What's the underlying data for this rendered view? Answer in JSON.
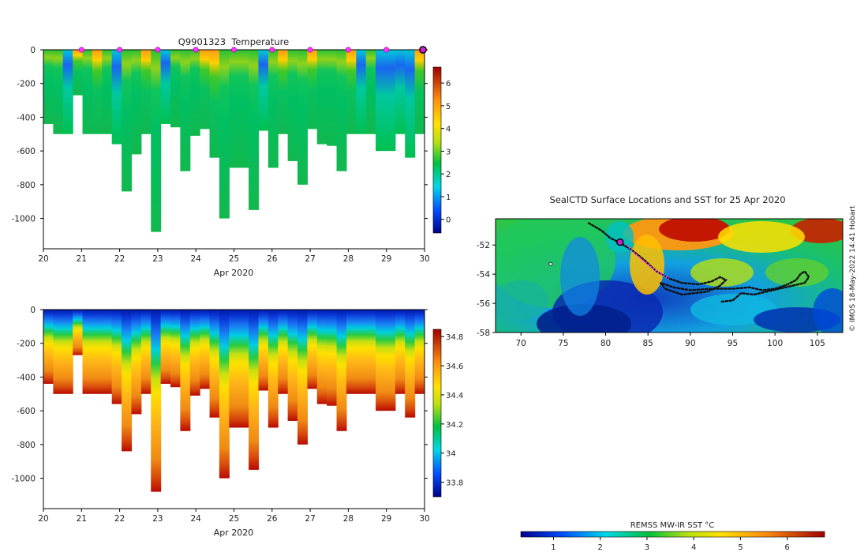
{
  "chart_data": [
    {
      "type": "heatmap",
      "id": "temperature",
      "title": "Q9901323  Temperature",
      "xlabel": "Apr 2020",
      "ylabel": "",
      "xlim": [
        20,
        30
      ],
      "ylim": [
        -1180,
        0
      ],
      "x_ticks": [
        "20",
        "21",
        "22",
        "23",
        "24",
        "25",
        "26",
        "27",
        "28",
        "29",
        "30"
      ],
      "y_ticks": [
        {
          "v": 0,
          "label": "0"
        },
        {
          "v": -200,
          "label": "-200"
        },
        {
          "v": -400,
          "label": "-400"
        },
        {
          "v": -600,
          "label": "-600"
        },
        {
          "v": -800,
          "label": "-800"
        },
        {
          "v": -1000,
          "label": "-1000"
        }
      ],
      "profile_depths_m": [
        440,
        500,
        500,
        270,
        500,
        500,
        500,
        560,
        840,
        620,
        500,
        1080,
        440,
        460,
        720,
        510,
        470,
        640,
        1000,
        700,
        700,
        950,
        480,
        700,
        500,
        660,
        800,
        470,
        560,
        570,
        720,
        500,
        500,
        500,
        600,
        600,
        500,
        640,
        500
      ],
      "surface_markers_day": [
        21,
        22,
        23,
        24,
        25,
        26,
        27,
        28,
        29
      ],
      "final_marker_day": 30,
      "colorbar": {
        "min": -0.6,
        "max": 6.7,
        "ticks": [
          "0",
          "1",
          "2",
          "3",
          "4",
          "5",
          "6"
        ]
      }
    },
    {
      "type": "heatmap",
      "id": "salinity",
      "title": "",
      "xlabel": "Apr 2020",
      "ylabel": "",
      "xlim": [
        20,
        30
      ],
      "ylim": [
        -1180,
        0
      ],
      "x_ticks": [
        "20",
        "21",
        "22",
        "23",
        "24",
        "25",
        "26",
        "27",
        "28",
        "29",
        "30"
      ],
      "y_ticks": [
        {
          "v": 0,
          "label": "0"
        },
        {
          "v": -200,
          "label": "-200"
        },
        {
          "v": -400,
          "label": "-400"
        },
        {
          "v": -600,
          "label": "-600"
        },
        {
          "v": -800,
          "label": "-800"
        },
        {
          "v": -1000,
          "label": "-1000"
        }
      ],
      "profile_depths_m": [
        440,
        500,
        500,
        270,
        500,
        500,
        500,
        560,
        840,
        620,
        500,
        1080,
        440,
        460,
        720,
        510,
        470,
        640,
        1000,
        700,
        700,
        950,
        480,
        700,
        500,
        660,
        800,
        470,
        560,
        570,
        720,
        500,
        500,
        500,
        600,
        600,
        500,
        640,
        500
      ],
      "colorbar": {
        "min": 33.7,
        "max": 34.85,
        "ticks": [
          "33.8",
          "34",
          "34.2",
          "34.4",
          "34.6",
          "34.8"
        ]
      }
    },
    {
      "type": "heatmap",
      "id": "sst_map",
      "title": "SealCTD Surface Locations and SST for 25 Apr 2020",
      "xlabel": "",
      "ylabel": "",
      "xlim": [
        67,
        108
      ],
      "ylim": [
        -58,
        -50.2
      ],
      "x_ticks": [
        "70",
        "75",
        "80",
        "85",
        "90",
        "95",
        "100",
        "105"
      ],
      "y_ticks": [
        "-52",
        "-54",
        "-56",
        "-58"
      ],
      "track_lonlat": [
        [
          78,
          -50.5
        ],
        [
          79.5,
          -51
        ],
        [
          80.5,
          -51.5
        ],
        [
          81.5,
          -51.8
        ],
        [
          83,
          -52.3
        ],
        [
          84.5,
          -53
        ],
        [
          86,
          -53.8
        ],
        [
          87.5,
          -54.3
        ],
        [
          89,
          -54.6
        ],
        [
          91,
          -54.7
        ],
        [
          92.5,
          -54.5
        ],
        [
          93.5,
          -54.2
        ],
        [
          94.2,
          -54.4
        ],
        [
          93.5,
          -54.8
        ],
        [
          92,
          -55.2
        ],
        [
          89,
          -55.4
        ],
        [
          87,
          -55
        ],
        [
          86.5,
          -54.6
        ],
        [
          88,
          -54.9
        ],
        [
          90,
          -55.1
        ],
        [
          92.5,
          -55
        ],
        [
          95,
          -55
        ],
        [
          97,
          -54.9
        ],
        [
          98.5,
          -55.1
        ],
        [
          100,
          -55
        ],
        [
          101.5,
          -54.7
        ],
        [
          102.5,
          -54.4
        ],
        [
          103,
          -54
        ],
        [
          103.5,
          -53.8
        ],
        [
          104,
          -54.2
        ],
        [
          103.5,
          -54.6
        ],
        [
          102,
          -54.8
        ],
        [
          100.5,
          -55
        ],
        [
          99,
          -55.2
        ],
        [
          97.5,
          -55.4
        ],
        [
          96,
          -55.3
        ],
        [
          95,
          -55.8
        ],
        [
          93.5,
          -55.9
        ]
      ],
      "highlight_track_lonlat": [
        [
          82.5,
          -52
        ],
        [
          83.5,
          -52.6
        ],
        [
          84.5,
          -53.1
        ],
        [
          86,
          -53.8
        ],
        [
          87.5,
          -54.3
        ]
      ],
      "current_position_lonlat": [
        81.7,
        -51.8
      ],
      "extra_marker_lonlat": [
        73.5,
        -53.3
      ],
      "colorbar": {
        "label": "REMSS MW-IR SST °C",
        "min": 0.3,
        "max": 6.8,
        "ticks": [
          "1",
          "2",
          "3",
          "4",
          "5",
          "6"
        ]
      }
    }
  ],
  "credit": "© IMOS 18-May-2022 14:41 Hobart",
  "colors": {
    "marker_fill": "#ff33ff",
    "marker_edge": "#aa00aa",
    "final_marker": "#cc22cc",
    "track": "#111111",
    "frame": "#000000"
  }
}
